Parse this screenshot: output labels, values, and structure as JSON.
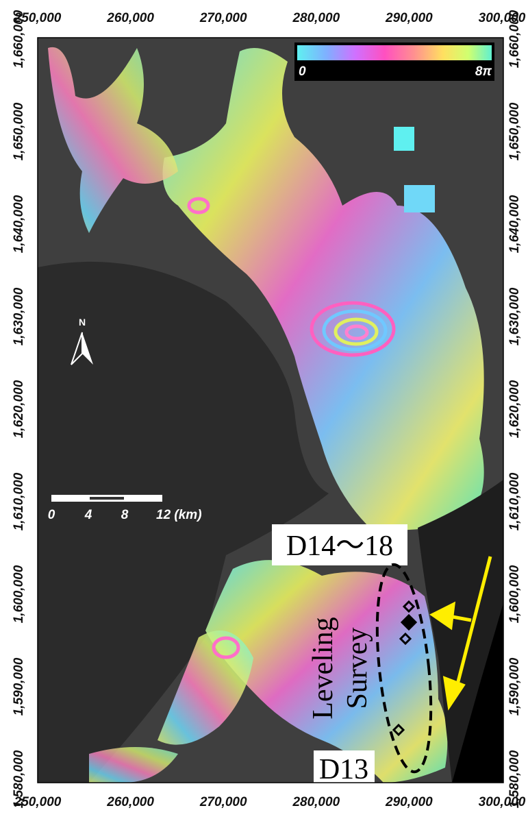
{
  "axes": {
    "x_labels": [
      "250,000",
      "260,000",
      "270,000",
      "280,000",
      "290,000",
      "300,000"
    ],
    "y_labels": [
      "1,660,000",
      "1,650,000",
      "1,640,000",
      "1,630,000",
      "1,620,000",
      "1,610,000",
      "1,600,000",
      "1,590,000",
      "1,580,000"
    ]
  },
  "colorbar": {
    "min_label": "0",
    "max_label": "8π"
  },
  "north": "N",
  "scale_bar": {
    "labels": [
      "0",
      "4",
      "8",
      "12 (km)"
    ]
  },
  "annotations": {
    "d14_18": "D14〜18",
    "leveling": "Leveling",
    "survey": "Survey",
    "d13": "D13"
  }
}
